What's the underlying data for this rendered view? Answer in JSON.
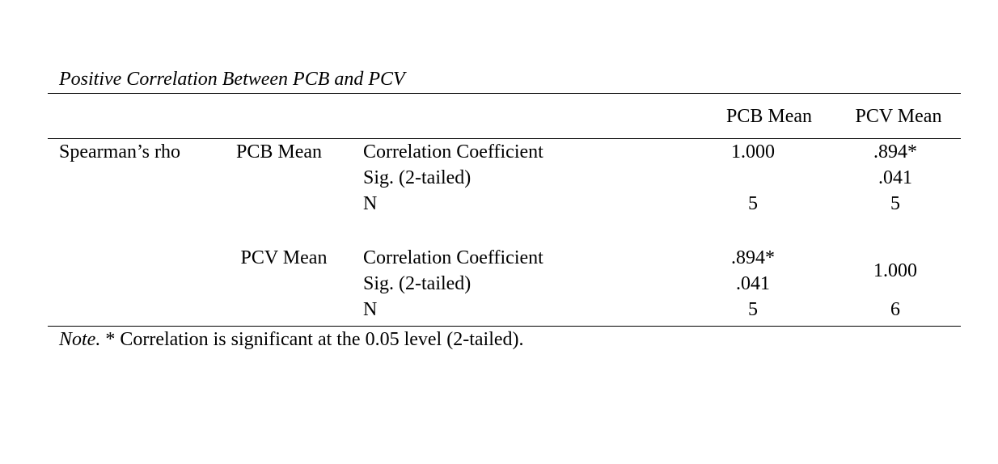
{
  "title": "Positive Correlation Between PCB and PCV",
  "table": {
    "columns": [
      "PCB Mean",
      "PCV Mean"
    ],
    "group": "Spearman’s rho",
    "blocks": [
      {
        "label": "PCB Mean",
        "rows": [
          {
            "stat": "Correlation Coefficient",
            "cells": [
              "1.000",
              ".894*"
            ]
          },
          {
            "stat": "Sig. (2-tailed)",
            "cells": [
              null,
              ".041"
            ]
          },
          {
            "stat": "N",
            "cells": [
              "5",
              "5"
            ]
          }
        ]
      },
      {
        "label": "PCV Mean",
        "rows": [
          {
            "stat": "Correlation Coefficient",
            "cells": [
              ".894*",
              "1.000"
            ]
          },
          {
            "stat": "Sig. (2-tailed)",
            "cells": [
              ".041",
              null
            ]
          },
          {
            "stat": "N",
            "cells": [
              "5",
              "6"
            ]
          }
        ]
      }
    ]
  },
  "note": {
    "label": "Note.",
    "text": "* Correlation is significant at the 0.05 level (2-tailed)."
  }
}
